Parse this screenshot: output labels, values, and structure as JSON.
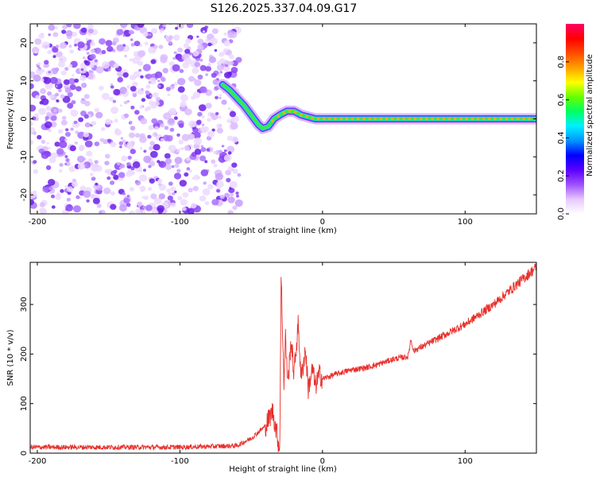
{
  "title": "S126.2025.337.04.09.G17",
  "colors": {
    "snr_line": "#e8302c",
    "colorbar": [
      "#ffffff",
      "#e6c8ff",
      "#a050ff",
      "#5a00ff",
      "#0000ff",
      "#0096ff",
      "#00f0ff",
      "#00ff64",
      "#64ff00",
      "#ffff00",
      "#ffa000",
      "#ff4b00",
      "#ff0000",
      "#ff0064"
    ]
  },
  "chart_data": [
    {
      "type": "heatmap",
      "xlabel": "Height of straight line (km)",
      "ylabel": "Frequency (Hz)",
      "xlim": [
        -205,
        150
      ],
      "ylim": [
        -25,
        25
      ],
      "xticks": [
        -200,
        -100,
        0,
        100
      ],
      "yticks": [
        -20,
        -10,
        0,
        10,
        20
      ],
      "colorbar": {
        "label": "Normalized spectral amplitude",
        "range": [
          0,
          1
        ],
        "ticks": [
          "0.0",
          "0.2",
          "0.4",
          "0.6",
          "0.8"
        ]
      },
      "noise_region_x": [
        -205,
        -58
      ],
      "ridge": {
        "x": [
          -70,
          -65,
          -60,
          -55,
          -50,
          -45,
          -42,
          -38,
          -34,
          -30,
          -25,
          -20,
          -15,
          -10,
          -5,
          0,
          10,
          20,
          40,
          60,
          80,
          100,
          120,
          150
        ],
        "y": [
          9,
          7.5,
          5.5,
          3.5,
          1,
          -1.5,
          -2.5,
          -2,
          0,
          1,
          2,
          2,
          1,
          0.5,
          0,
          0,
          0,
          0,
          0,
          0,
          0,
          0,
          0,
          0
        ]
      }
    },
    {
      "type": "line",
      "xlabel": "Height of straight line (km)",
      "ylabel": "SNR (10 * v/v)",
      "xlim": [
        -205,
        150
      ],
      "ylim": [
        0,
        385
      ],
      "xticks": [
        -200,
        -100,
        0,
        100
      ],
      "yticks": [
        0,
        100,
        200,
        300
      ],
      "series": [
        {
          "x": [
            -205,
            -150,
            -100,
            -60,
            -50,
            -40,
            -35,
            -32,
            -30,
            -29,
            -27,
            -26,
            -25,
            -24,
            -22,
            -20,
            -17,
            -15,
            -12,
            -10,
            -7,
            -5,
            -2,
            0,
            5,
            10,
            20,
            30,
            40,
            50,
            60,
            62,
            64,
            66,
            70,
            80,
            90,
            100,
            110,
            120,
            130,
            140,
            150
          ],
          "y": [
            12,
            12,
            12,
            15,
            30,
            55,
            85,
            40,
            5,
            360,
            140,
            240,
            170,
            150,
            230,
            160,
            260,
            150,
            210,
            130,
            170,
            135,
            160,
            150,
            155,
            160,
            168,
            172,
            180,
            190,
            195,
            230,
            205,
            210,
            215,
            230,
            245,
            260,
            280,
            300,
            325,
            350,
            375
          ]
        }
      ]
    }
  ]
}
